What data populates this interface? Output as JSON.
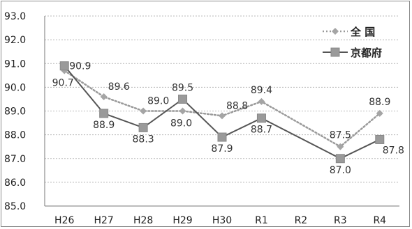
{
  "chart_data": {
    "type": "line",
    "categories": [
      "H26",
      "H27",
      "H28",
      "H29",
      "H30",
      "R1",
      "R2",
      "R3",
      "R4"
    ],
    "ylim": [
      85.0,
      93.0
    ],
    "yticks": [
      "85.0",
      "86.0",
      "87.0",
      "88.0",
      "89.0",
      "90.0",
      "91.0",
      "92.0",
      "93.0"
    ],
    "grid": true,
    "legend_position": "top-right",
    "series": [
      {
        "name": "全 国",
        "style": "dotted",
        "color": "#9a9a9a",
        "marker": "diamond",
        "values": [
          90.7,
          89.6,
          89.0,
          89.0,
          88.8,
          89.4,
          null,
          87.5,
          88.9
        ],
        "labels": [
          "90.7",
          "89.6",
          "89.0",
          "89.0",
          "88.8",
          "89.4",
          "",
          "87.5",
          "88.9"
        ]
      },
      {
        "name": "京都府",
        "style": "solid",
        "color": "#555555",
        "marker": "square",
        "values": [
          90.9,
          88.9,
          88.3,
          89.5,
          87.9,
          88.7,
          null,
          87.0,
          87.8
        ],
        "labels": [
          "90.9",
          "88.9",
          "88.3",
          "89.5",
          "87.9",
          "88.7",
          "",
          "87.0",
          "87.8"
        ]
      }
    ]
  }
}
